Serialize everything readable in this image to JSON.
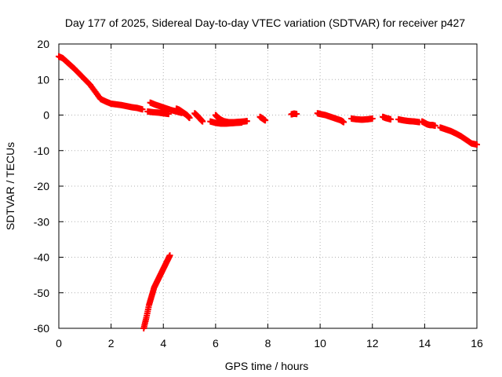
{
  "chart_data": {
    "type": "scatter",
    "title": "Day 177 of 2025, Sidereal Day-to-day VTEC variation (SDTVAR) for receiver p427",
    "xlabel": "GPS time / hours",
    "ylabel": "SDTVAR / TECUs",
    "xlim": [
      0,
      16
    ],
    "ylim": [
      -60,
      20
    ],
    "xticks": [
      "0",
      "2",
      "4",
      "6",
      "8",
      "10",
      "12",
      "14",
      "16"
    ],
    "yticks": [
      "20",
      "10",
      "0",
      "-10",
      "-20",
      "-30",
      "-40",
      "-50",
      "-60"
    ],
    "grid": true,
    "marker": "plus",
    "color": "#ff0000",
    "series": [
      {
        "name": "main",
        "x": [
          0.0,
          0.15,
          0.3,
          0.45,
          0.6,
          0.8,
          1.0,
          1.2,
          1.4,
          1.6,
          1.8,
          2.0,
          2.2,
          2.4,
          2.6,
          2.8,
          3.0,
          3.2
        ],
        "y": [
          16.5,
          16.0,
          15.0,
          14.0,
          13.0,
          11.5,
          10.0,
          8.5,
          6.5,
          4.5,
          3.8,
          3.2,
          3.0,
          2.8,
          2.5,
          2.2,
          2.0,
          1.6
        ]
      },
      {
        "name": "seg-3.4-4.6",
        "x": [
          3.5,
          3.7,
          3.9,
          4.1,
          4.3,
          4.5,
          4.7
        ],
        "y": [
          3.5,
          2.9,
          2.4,
          1.9,
          1.4,
          1.0,
          0.6
        ]
      },
      {
        "name": "seg-3.4-4.3-low",
        "x": [
          3.4,
          3.6,
          3.8,
          4.0,
          4.2
        ],
        "y": [
          1.0,
          0.8,
          0.7,
          0.5,
          0.3
        ]
      },
      {
        "name": "seg-4.6-5.0",
        "x": [
          4.5,
          4.6,
          4.7,
          4.8,
          4.9,
          5.0
        ],
        "y": [
          1.8,
          1.5,
          1.0,
          0.5,
          0.0,
          -0.8
        ]
      },
      {
        "name": "seg-5.2-5.5",
        "x": [
          5.2,
          5.3,
          5.4,
          5.5
        ],
        "y": [
          0.5,
          -0.2,
          -1.0,
          -1.8
        ]
      },
      {
        "name": "seg-6.0-7.2",
        "x": [
          6.0,
          6.1,
          6.2,
          6.3,
          6.5,
          6.7,
          6.9,
          7.1,
          7.2
        ],
        "y": [
          0.0,
          -0.8,
          -1.3,
          -1.7,
          -2.0,
          -2.0,
          -1.9,
          -1.8,
          -1.7
        ]
      },
      {
        "name": "seg-5.8-6.5",
        "x": [
          5.8,
          6.0,
          6.2,
          6.4,
          6.6,
          6.8,
          7.0
        ],
        "y": [
          -1.8,
          -2.2,
          -2.4,
          -2.4,
          -2.3,
          -2.2,
          -2.1
        ]
      },
      {
        "name": "seg-7.7-7.9",
        "x": [
          7.7,
          7.8,
          7.9
        ],
        "y": [
          -0.5,
          -1.0,
          -1.5
        ]
      },
      {
        "name": "seg-9.0",
        "x": [
          8.9,
          9.0,
          9.1
        ],
        "y": [
          0.2,
          0.4,
          0.3
        ]
      },
      {
        "name": "seg-9.9-10.9",
        "x": [
          9.9,
          10.0,
          10.2,
          10.4,
          10.6,
          10.8,
          10.9
        ],
        "y": [
          0.5,
          0.3,
          0.0,
          -0.5,
          -1.0,
          -1.5,
          -2.0
        ]
      },
      {
        "name": "seg-11.2-12.0",
        "x": [
          11.2,
          11.4,
          11.6,
          11.8,
          12.0
        ],
        "y": [
          -1.0,
          -1.2,
          -1.3,
          -1.2,
          -1.0
        ]
      },
      {
        "name": "seg-12.4-12.7",
        "x": [
          12.4,
          12.5,
          12.6,
          12.7
        ],
        "y": [
          -0.5,
          -0.8,
          -1.0,
          -1.2
        ]
      },
      {
        "name": "seg-13.0-13.8",
        "x": [
          13.0,
          13.2,
          13.4,
          13.6,
          13.8
        ],
        "y": [
          -1.2,
          -1.5,
          -1.7,
          -1.8,
          -2.0
        ]
      },
      {
        "name": "seg-14.0-14.4",
        "x": [
          13.9,
          14.0,
          14.1,
          14.2,
          14.3,
          14.4
        ],
        "y": [
          -1.8,
          -2.2,
          -2.6,
          -2.8,
          -2.8,
          -3.0
        ]
      },
      {
        "name": "seg-14.6-16.0",
        "x": [
          14.6,
          14.8,
          15.0,
          15.2,
          15.4,
          15.6,
          15.8,
          16.0
        ],
        "y": [
          -3.5,
          -4.0,
          -4.5,
          -5.2,
          -6.0,
          -7.0,
          -8.0,
          -8.3
        ]
      },
      {
        "name": "steep-drop",
        "x": [
          3.25,
          3.35,
          3.45,
          3.55,
          3.65,
          3.75,
          3.85,
          3.95,
          4.05,
          4.15,
          4.25
        ],
        "y": [
          -60.0,
          -57.0,
          -53.5,
          -51.0,
          -48.5,
          -47.0,
          -45.5,
          -44.0,
          -42.5,
          -41.0,
          -39.5
        ]
      }
    ]
  }
}
